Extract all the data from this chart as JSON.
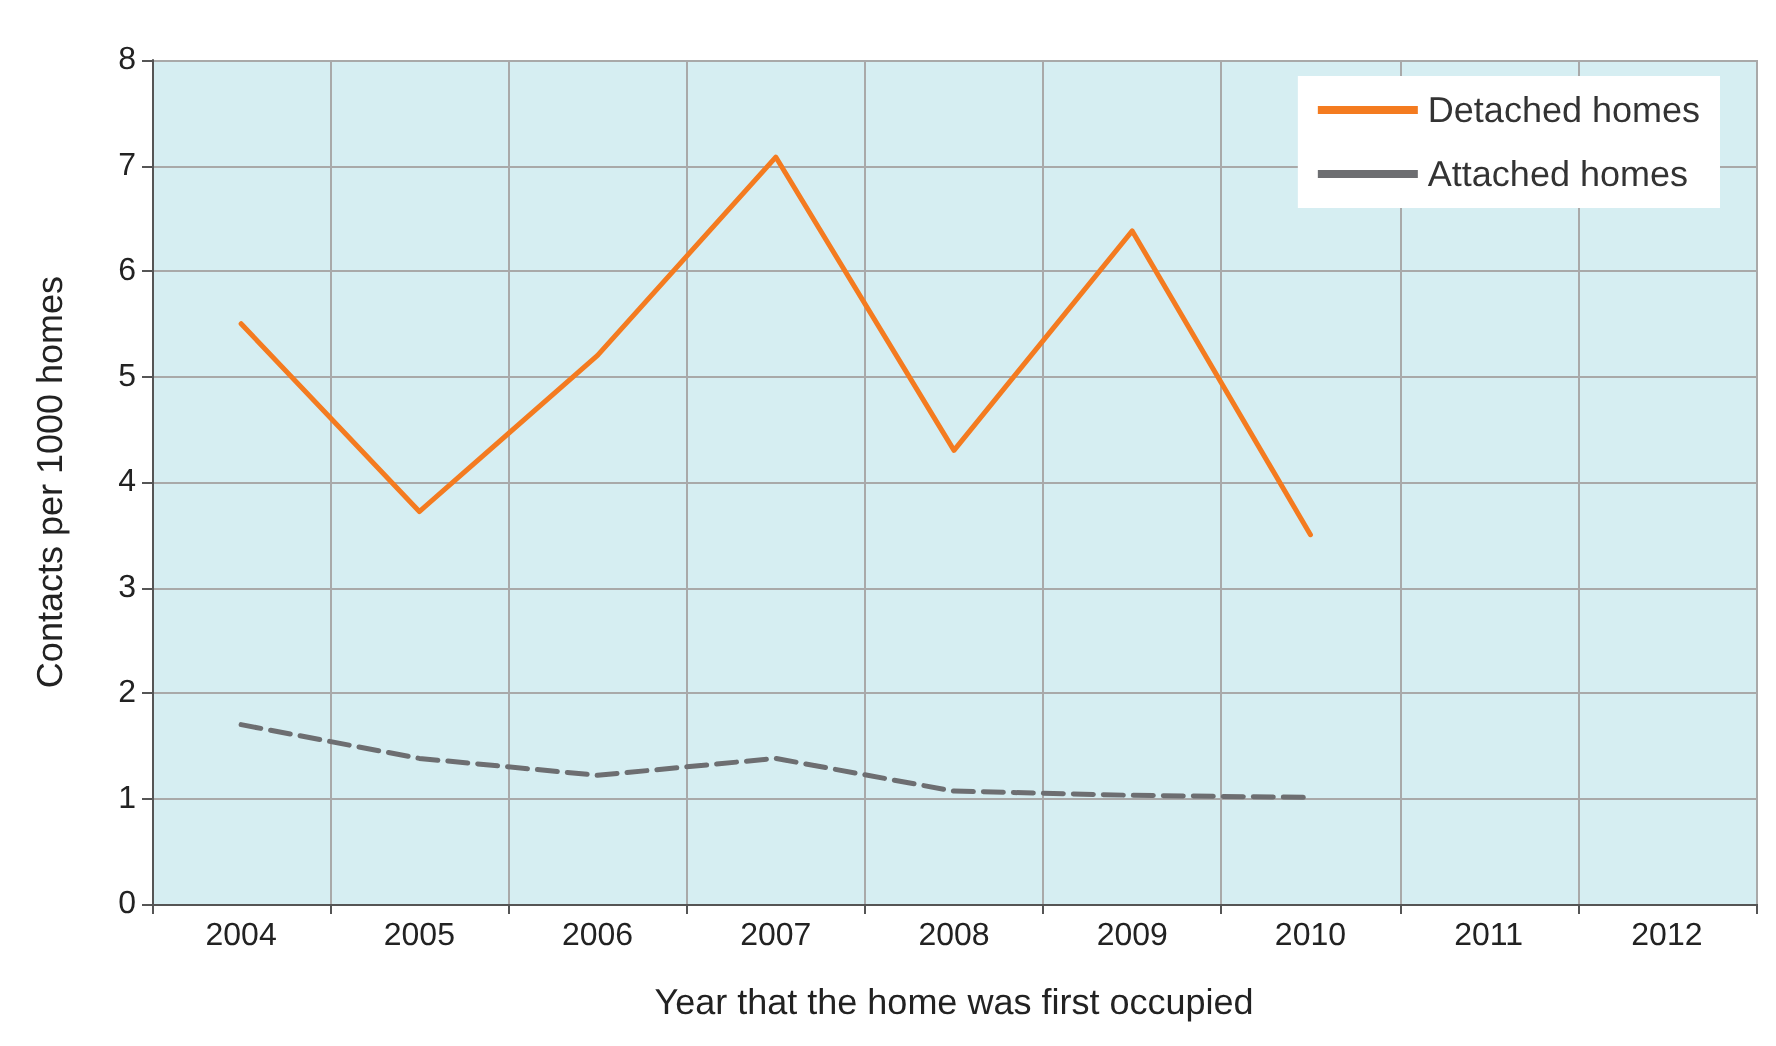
{
  "chart_data": {
    "type": "line",
    "xlabel": "Year that the home was first occupied",
    "ylabel": "Contacts per 1000 homes",
    "categories": [
      "2004",
      "2005",
      "2006",
      "2007",
      "2008",
      "2009",
      "2010",
      "2011",
      "2012"
    ],
    "series": [
      {
        "name": "Detached homes",
        "color": "#f47b20",
        "line_style": "solid",
        "values": [
          5.5,
          3.72,
          5.2,
          7.08,
          4.3,
          6.38,
          3.5,
          null,
          null
        ]
      },
      {
        "name": "Attached homes",
        "color": "#6d6e71",
        "line_style": "dashed",
        "values": [
          1.7,
          1.38,
          1.22,
          1.38,
          1.07,
          1.03,
          1.01,
          null,
          null
        ]
      }
    ],
    "ylim": [
      0,
      8
    ],
    "yticks": [
      0,
      1,
      2,
      3,
      4,
      5,
      6,
      7,
      8
    ],
    "grid": true,
    "legend": "top right",
    "marker": "none"
  }
}
